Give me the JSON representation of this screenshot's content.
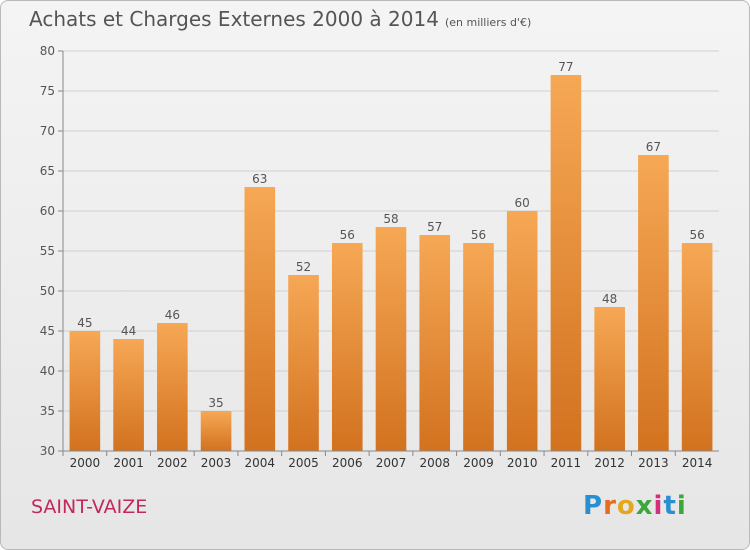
{
  "title": "Achats et Charges Externes 2000 à 2014",
  "subtitle": "(en milliers d'€)",
  "commune": "SAINT-VAIZE",
  "logo": {
    "text": "Proxiti",
    "letter_colors": [
      "#2a8fd0",
      "#e96b1c",
      "#e2a91d",
      "#3aa93a",
      "#d62f7a",
      "#2a8fd0",
      "#3aa93a"
    ]
  },
  "colors": {
    "bar_light": "#f6a855",
    "bar_dark": "#d2721f",
    "axis_text": "#555555",
    "grid": "#d0d0d0"
  },
  "chart_data": {
    "type": "bar",
    "categories": [
      "2000",
      "2001",
      "2002",
      "2003",
      "2004",
      "2005",
      "2006",
      "2007",
      "2008",
      "2009",
      "2010",
      "2011",
      "2012",
      "2013",
      "2014"
    ],
    "values": [
      45,
      44,
      46,
      35,
      63,
      52,
      56,
      58,
      57,
      56,
      60,
      77,
      48,
      67,
      56
    ],
    "ylim": [
      30,
      80
    ],
    "yticks": [
      30,
      35,
      40,
      45,
      50,
      55,
      60,
      65,
      70,
      75,
      80
    ],
    "grid": true,
    "data_labels": true
  }
}
